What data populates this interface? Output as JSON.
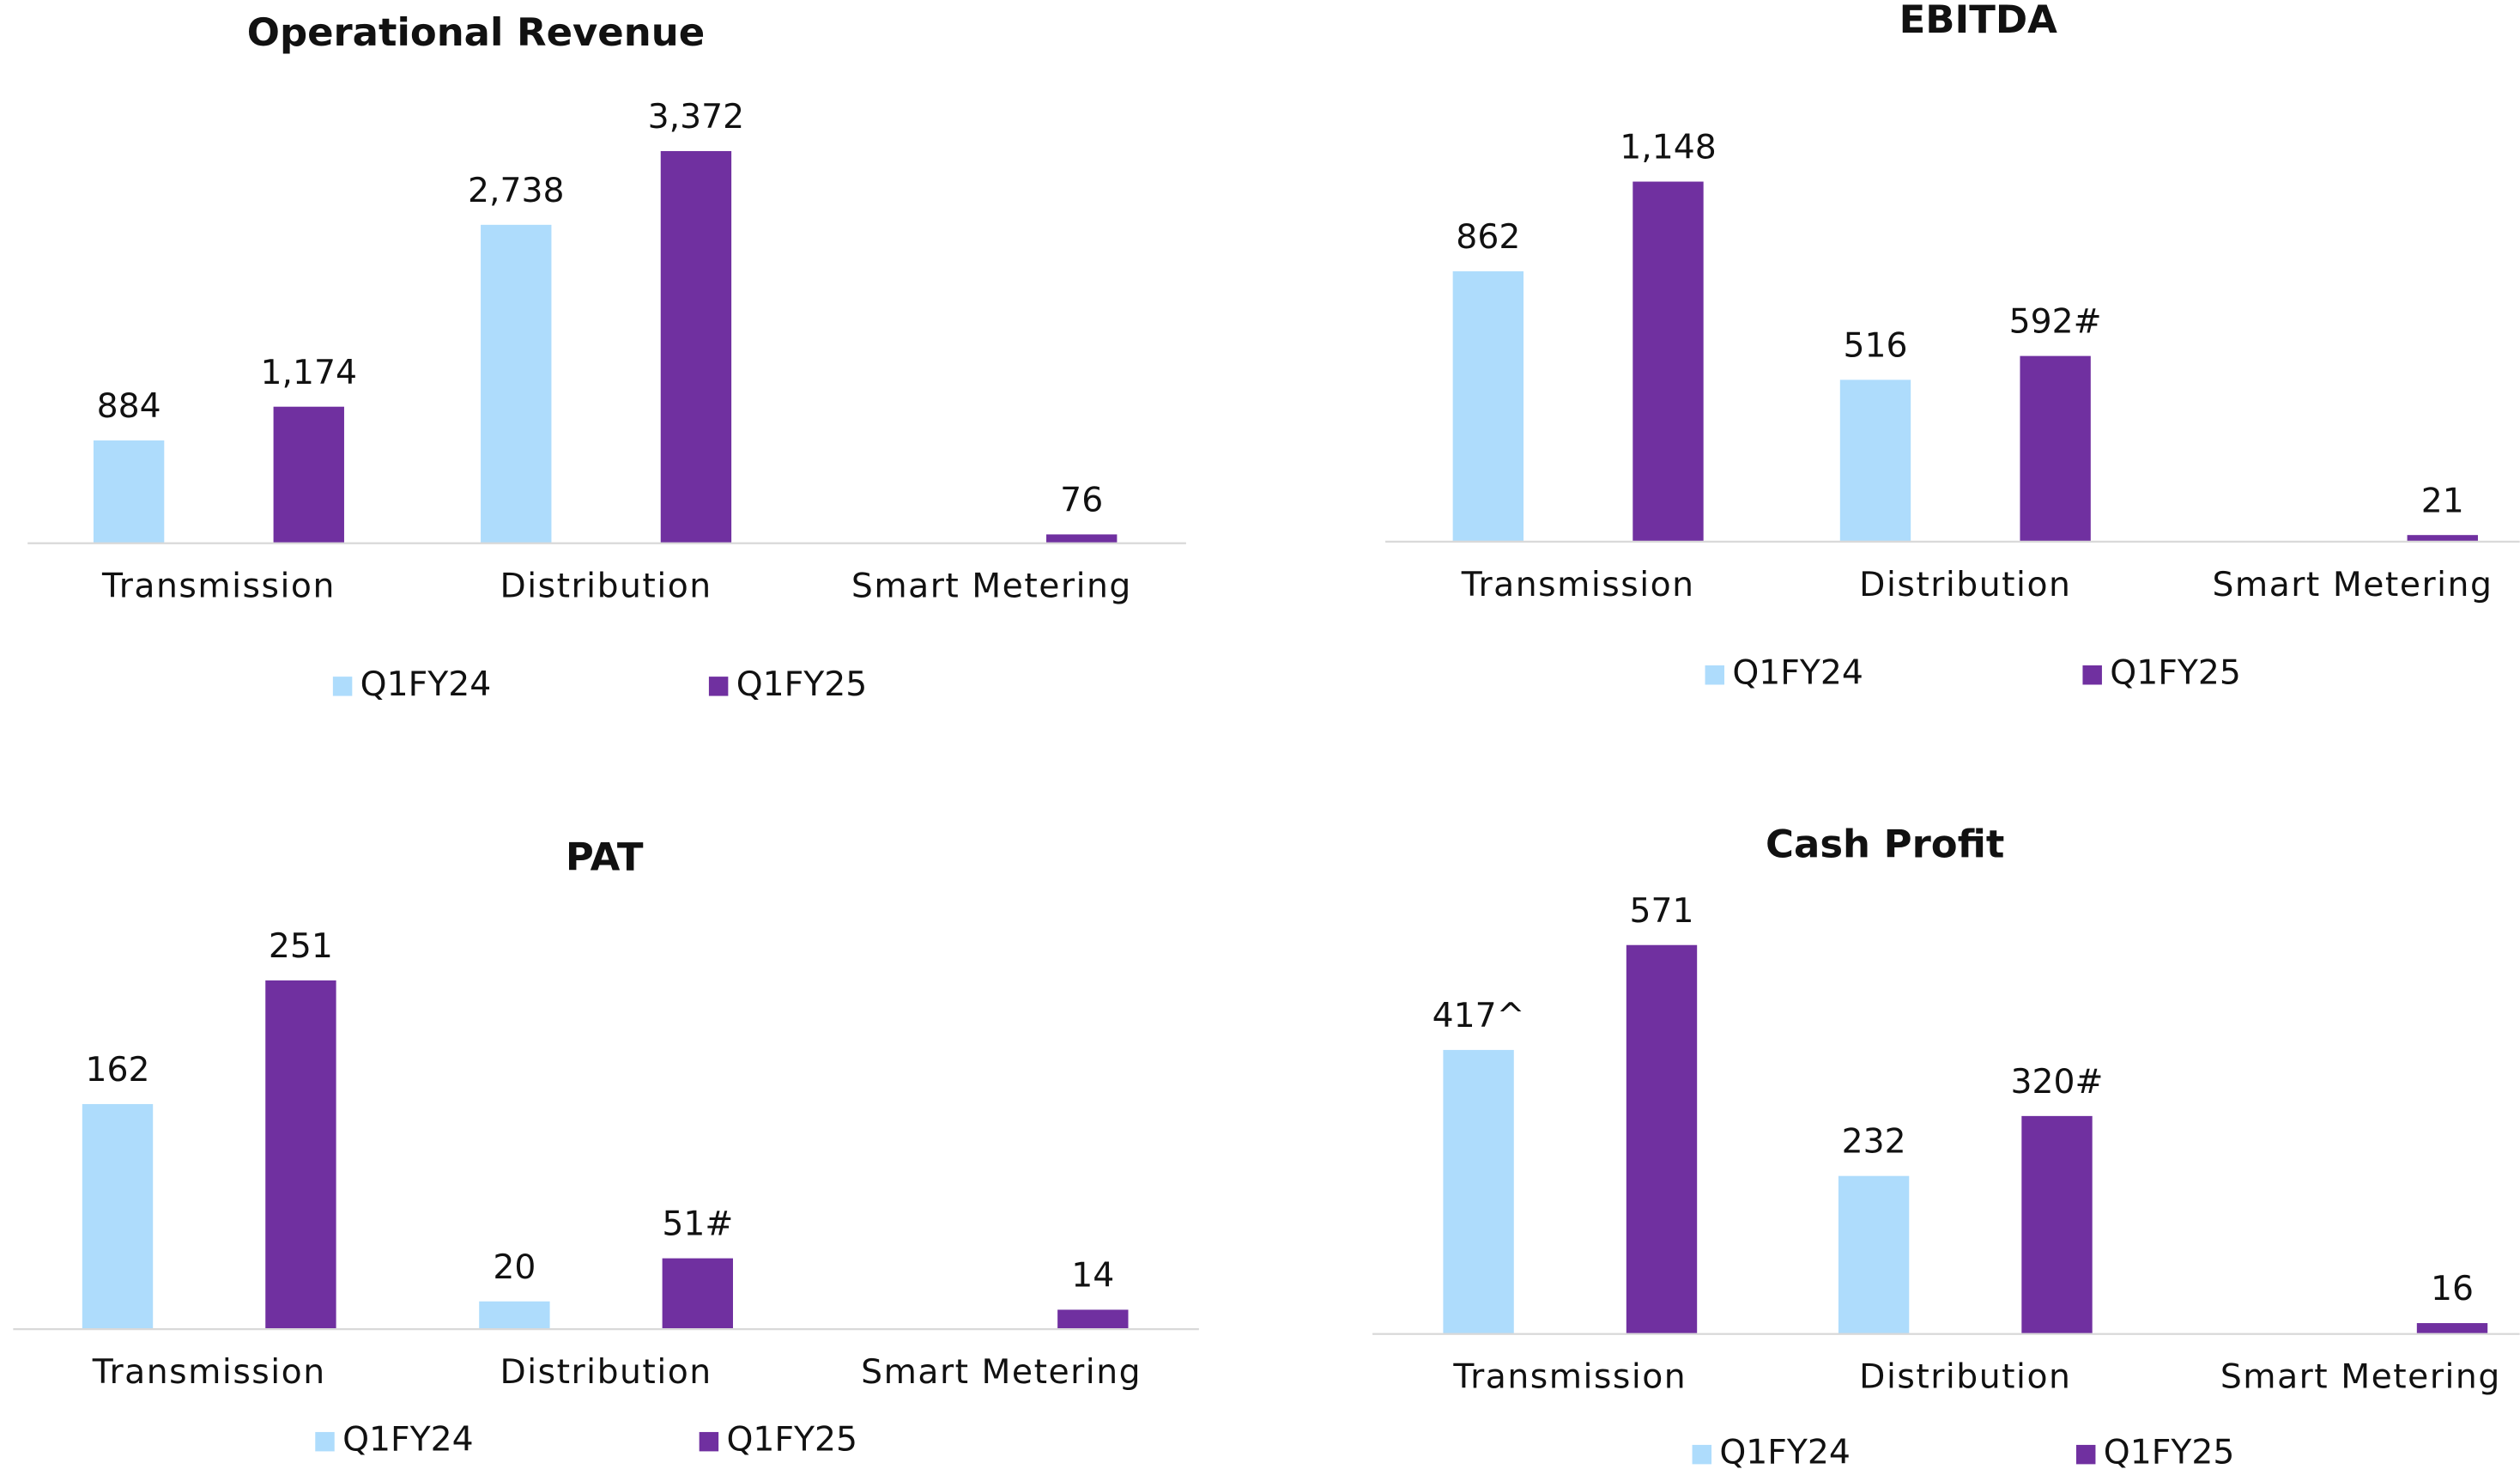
{
  "chart_data": [
    {
      "type": "bar",
      "title": "Operational Revenue",
      "categories": [
        "Transmission",
        "Distribution",
        "Smart Metering"
      ],
      "series": [
        {
          "name": "Q1FY24",
          "color": "#aedcfc",
          "values": [
            884,
            2738,
            null
          ],
          "value_labels": [
            "884",
            "2,738",
            null
          ]
        },
        {
          "name": "Q1FY25",
          "color": "#7030a0",
          "values": [
            1174,
            3372,
            76
          ],
          "value_labels": [
            "1,174",
            "3,372",
            "76"
          ]
        }
      ]
    },
    {
      "type": "bar",
      "title": "EBITDA",
      "categories": [
        "Transmission",
        "Distribution",
        "Smart Metering"
      ],
      "series": [
        {
          "name": "Q1FY24",
          "color": "#aedcfc",
          "values": [
            862,
            516,
            null
          ],
          "value_labels": [
            "862",
            "516",
            null
          ]
        },
        {
          "name": "Q1FY25",
          "color": "#7030a0",
          "values": [
            1148,
            592,
            21
          ],
          "value_labels": [
            "1,148",
            "592#",
            "21"
          ]
        }
      ]
    },
    {
      "type": "bar",
      "title": "PAT",
      "categories": [
        "Transmission",
        "Distribution",
        "Smart Metering"
      ],
      "series": [
        {
          "name": "Q1FY24",
          "color": "#aedcfc",
          "values": [
            162,
            20,
            null
          ],
          "value_labels": [
            "162",
            "20",
            null
          ]
        },
        {
          "name": "Q1FY25",
          "color": "#7030a0",
          "values": [
            251,
            51,
            14
          ],
          "value_labels": [
            "251",
            "51#",
            "14"
          ]
        }
      ]
    },
    {
      "type": "bar",
      "title": "Cash Profit",
      "categories": [
        "Transmission",
        "Distribution",
        "Smart Metering"
      ],
      "series": [
        {
          "name": "Q1FY24",
          "color": "#aedcfc",
          "values": [
            417,
            232,
            null
          ],
          "value_labels": [
            "417^",
            "232",
            null
          ]
        },
        {
          "name": "Q1FY25",
          "color": "#7030a0",
          "values": [
            571,
            320,
            16
          ],
          "value_labels": [
            "571",
            "320#",
            "16"
          ]
        }
      ]
    }
  ]
}
